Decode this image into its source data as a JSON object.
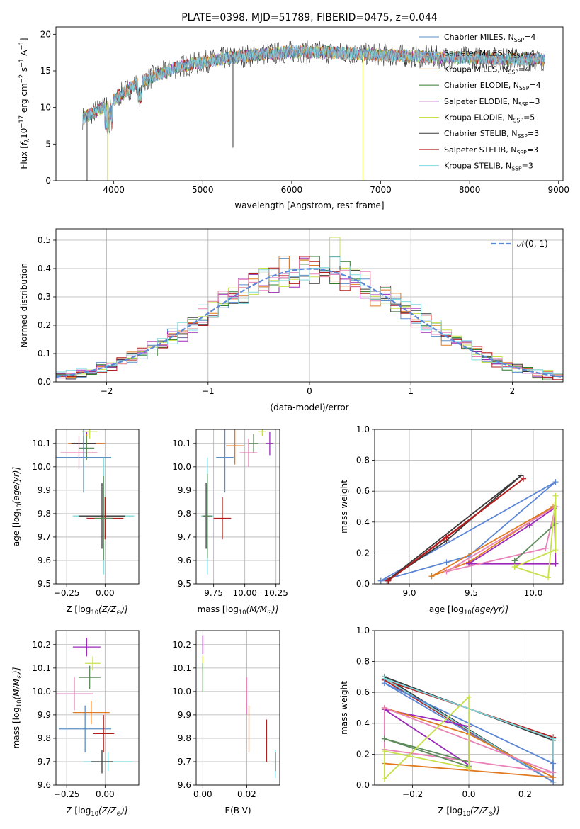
{
  "colors": {
    "chabrier_miles": "#5b8fc6",
    "salpeter_miles": "#8aa9cf",
    "kroupa_miles": "#e07b22",
    "chabrier_elodie": "#2f7d2a",
    "salpeter_elodie": "#9a28b8",
    "kroupa_elodie": "#c8e04a",
    "chabrier_stelib": "#3a3a3a",
    "salpeter_stelib": "#b21e1e",
    "kroupa_stelib": "#7fd9dd",
    "normal": "#5b86d6",
    "pink": "#e882b8",
    "sage": "#5f8c5c"
  },
  "chart_data": [
    {
      "id": "spectrum",
      "type": "line",
      "title": "PLATE=0398, MJD=51789, FIBERID=0475, z=0.044",
      "xlabel": "wavelength [Angstrom, rest frame]",
      "ylabel_parts": [
        "Flux [",
        "f",
        "λ",
        "10",
        "−17",
        " erg cm",
        "−2",
        " s",
        "−1",
        " A",
        "−1",
        "]"
      ],
      "xlim": [
        3350,
        9050
      ],
      "ylim": [
        0,
        21
      ],
      "xticks": [
        4000,
        5000,
        6000,
        7000,
        8000,
        9000
      ],
      "yticks": [
        0,
        5,
        10,
        15,
        20
      ],
      "grid": false,
      "legend_position": "top-right",
      "legend": [
        {
          "base": "Chabrier MILES, N",
          "sub": "SSP",
          "tail": "=4",
          "color_key": "chabrier_miles"
        },
        {
          "base": "Salpeter MILES, N",
          "sub": "SSP",
          "tail": "=4",
          "color_key": "salpeter_miles"
        },
        {
          "base": "Kroupa MILES, N",
          "sub": "SSP",
          "tail": "=4",
          "color_key": "kroupa_miles"
        },
        {
          "base": "Chabrier ELODIE, N",
          "sub": "SSP",
          "tail": "=4",
          "color_key": "chabrier_elodie"
        },
        {
          "base": "Salpeter ELODIE, N",
          "sub": "SSP",
          "tail": "=3",
          "color_key": "salpeter_elodie"
        },
        {
          "base": "Kroupa ELODIE, N",
          "sub": "SSP",
          "tail": "=5",
          "color_key": "kroupa_elodie"
        },
        {
          "base": "Chabrier STELIB, N",
          "sub": "SSP",
          "tail": "=3",
          "color_key": "chabrier_stelib"
        },
        {
          "base": "Salpeter STELIB, N",
          "sub": "SSP",
          "tail": "=3",
          "color_key": "salpeter_stelib"
        },
        {
          "base": "Kroupa STELIB, N",
          "sub": "SSP",
          "tail": "=3",
          "color_key": "kroupa_stelib"
        }
      ],
      "data_range_x": [
        3650,
        8850
      ],
      "continuum": [
        [
          3650,
          8.5
        ],
        [
          3800,
          9.5
        ],
        [
          3950,
          10.5
        ],
        [
          4100,
          12.0
        ],
        [
          4300,
          13.5
        ],
        [
          4500,
          14.5
        ],
        [
          4700,
          15.5
        ],
        [
          5000,
          16.2
        ],
        [
          5300,
          16.8
        ],
        [
          5600,
          17.2
        ],
        [
          6000,
          17.6
        ],
        [
          6500,
          17.5
        ],
        [
          7000,
          17.2
        ],
        [
          7500,
          16.9
        ],
        [
          8000,
          16.8
        ],
        [
          8500,
          16.6
        ],
        [
          8850,
          16.5
        ]
      ],
      "features": [
        {
          "x": 3700,
          "y": 0.0,
          "color_key": "chabrier_stelib"
        },
        {
          "x": 3930,
          "y": 0.0,
          "color_key": "kroupa_elodie"
        },
        {
          "x": 5340,
          "y": 4.5,
          "color_key": "chabrier_stelib"
        },
        {
          "x": 6800,
          "y": 0.0,
          "color_key": "kroupa_elodie"
        },
        {
          "x": 7430,
          "y": 0.0,
          "color_key": "kroupa_miles"
        },
        {
          "x": 7430,
          "y": 0.0,
          "color_key": "salpeter_stelib"
        }
      ]
    },
    {
      "id": "residuals",
      "type": "histogram",
      "xlabel": "(data-model)/error",
      "ylabel": "Normed distribution",
      "xlim": [
        -2.5,
        2.5
      ],
      "ylim": [
        0,
        0.54
      ],
      "xticks": [
        -2,
        -1,
        0,
        1,
        2
      ],
      "yticks": [
        0.0,
        0.1,
        0.2,
        0.3,
        0.4,
        0.5
      ],
      "grid": true,
      "legend_position": "top-right",
      "legend_label": "𝒩(0, 1)",
      "bin_width": 0.1,
      "series_color_keys": [
        "chabrier_miles",
        "kroupa_miles",
        "chabrier_elodie",
        "salpeter_elodie",
        "kroupa_elodie",
        "chabrier_stelib",
        "salpeter_stelib",
        "pink",
        "kroupa_stelib"
      ]
    },
    {
      "id": "age_vs_Z",
      "type": "errorbar",
      "xlabel_parts": [
        "Z [log",
        "10",
        "(Z/Z",
        "⊙",
        ")]"
      ],
      "ylabel_parts": [
        "age  [log",
        "10",
        "(age/yr)]"
      ],
      "xlim": [
        -0.32,
        0.22
      ],
      "ylim": [
        9.5,
        10.16
      ],
      "xticks": [
        -0.25,
        0.0
      ],
      "yticks": [
        9.5,
        9.6,
        9.7,
        9.8,
        9.9,
        10.0,
        10.1
      ],
      "grid": true,
      "points": [
        {
          "x": -0.1,
          "y": 10.15,
          "xerr": 0.05,
          "yerr": 0.03,
          "color_key": "kroupa_elodie"
        },
        {
          "x": -0.12,
          "y": 10.1,
          "xerr": 0.1,
          "yerr": 0.05,
          "color_key": "salpeter_elodie"
        },
        {
          "x": -0.12,
          "y": 10.1,
          "xerr": 0.12,
          "yerr": 0.04,
          "color_key": "kroupa_miles"
        },
        {
          "x": -0.14,
          "y": 10.1,
          "xerr": 0.08,
          "yerr": 0.03,
          "color_key": "chabrier_stelib"
        },
        {
          "x": -0.17,
          "y": 10.06,
          "xerr": 0.12,
          "yerr": 0.07,
          "color_key": "pink"
        },
        {
          "x": -0.12,
          "y": 10.08,
          "xerr": 0.05,
          "yerr": 0.05,
          "color_key": "sage"
        },
        {
          "x": -0.14,
          "y": 10.04,
          "xerr": 0.18,
          "yerr": 0.15,
          "color_key": "chabrier_miles"
        },
        {
          "x": -0.01,
          "y": 9.79,
          "xerr": 0.2,
          "yerr": 0.25,
          "color_key": "kroupa_stelib"
        },
        {
          "x": -0.02,
          "y": 9.79,
          "xerr": 0.15,
          "yerr": 0.14,
          "color_key": "chabrier_stelib"
        },
        {
          "x": 0.0,
          "y": 9.78,
          "xerr": 0.12,
          "yerr": 0.09,
          "color_key": "salpeter_stelib"
        },
        {
          "x": -0.01,
          "y": 9.78,
          "xerr": 0.06,
          "yerr": 0.18,
          "color_key": "sage"
        }
      ]
    },
    {
      "id": "age_vs_mass",
      "type": "errorbar",
      "xlabel_parts": [
        "mass [log",
        "10",
        "(M/M",
        "⊙",
        ")]"
      ],
      "xlim": [
        9.61,
        10.28
      ],
      "ylim": [
        9.5,
        10.16
      ],
      "xticks": [
        9.75,
        10.0,
        10.25
      ],
      "yticks": [
        9.5,
        9.6,
        9.7,
        9.8,
        9.9,
        10.0,
        10.1
      ],
      "grid": true,
      "points": [
        {
          "x": 10.14,
          "y": 10.15,
          "xerr": 0.03,
          "yerr": 0.02,
          "color_key": "kroupa_elodie"
        },
        {
          "x": 10.2,
          "y": 10.1,
          "xerr": 0.03,
          "yerr": 0.05,
          "color_key": "salpeter_elodie"
        },
        {
          "x": 10.07,
          "y": 10.1,
          "xerr": 0.04,
          "yerr": 0.04,
          "color_key": "sage"
        },
        {
          "x": 9.92,
          "y": 10.09,
          "xerr": 0.07,
          "yerr": 0.08,
          "color_key": "kroupa_miles"
        },
        {
          "x": 10.03,
          "y": 10.06,
          "xerr": 0.07,
          "yerr": 0.06,
          "color_key": "pink"
        },
        {
          "x": 9.84,
          "y": 10.04,
          "xerr": 0.07,
          "yerr": 0.15,
          "color_key": "chabrier_miles"
        },
        {
          "x": 9.7,
          "y": 9.79,
          "xerr": 0.05,
          "yerr": 0.25,
          "color_key": "kroupa_stelib"
        },
        {
          "x": 9.69,
          "y": 9.79,
          "xerr": 0.02,
          "yerr": 0.14,
          "color_key": "chabrier_stelib"
        },
        {
          "x": 9.82,
          "y": 9.78,
          "xerr": 0.07,
          "yerr": 0.09,
          "color_key": "salpeter_stelib"
        },
        {
          "x": 9.7,
          "y": 9.79,
          "xerr": 0.04,
          "yerr": 0.18,
          "color_key": "sage"
        }
      ]
    },
    {
      "id": "weight_vs_age",
      "type": "line",
      "xlabel_parts": [
        "age  [log",
        "10",
        "(age/yr)]"
      ],
      "ylabel": "mass weight",
      "xlim": [
        8.72,
        10.24
      ],
      "ylim": [
        0.0,
        1.0
      ],
      "xticks": [
        9.0,
        9.5,
        10.0
      ],
      "yticks": [
        0.0,
        0.2,
        0.4,
        0.6,
        0.8,
        1.0
      ],
      "grid": true,
      "series": [
        {
          "color_key": "normal",
          "x": [
            8.77,
            9.3,
            9.48,
            10.18,
            8.77
          ],
          "y": [
            0.02,
            0.14,
            0.18,
            0.66,
            0.02
          ]
        },
        {
          "color_key": "chabrier_stelib",
          "x": [
            8.82,
            9.3,
            9.9,
            8.82
          ],
          "y": [
            0.02,
            0.28,
            0.7,
            0.02
          ]
        },
        {
          "color_key": "salpeter_stelib",
          "x": [
            8.83,
            9.3,
            9.92,
            8.83
          ],
          "y": [
            0.02,
            0.3,
            0.68,
            0.02
          ]
        },
        {
          "color_key": "kroupa_miles",
          "x": [
            9.18,
            9.48,
            10.16,
            9.18
          ],
          "y": [
            0.05,
            0.14,
            0.5,
            0.05
          ]
        },
        {
          "color_key": "salpeter_elodie",
          "x": [
            9.48,
            9.97,
            10.17,
            10.18,
            9.48
          ],
          "y": [
            0.13,
            0.38,
            0.49,
            0.13,
            0.13
          ]
        },
        {
          "color_key": "pink",
          "x": [
            9.3,
            10.1,
            10.18,
            9.3
          ],
          "y": [
            0.08,
            0.23,
            0.5,
            0.08
          ]
        },
        {
          "color_key": "sage",
          "x": [
            9.85,
            10.18,
            9.85,
            9.85
          ],
          "y": [
            0.15,
            0.39,
            0.15,
            0.15
          ]
        },
        {
          "color_key": "kroupa_elodie",
          "x": [
            9.85,
            10.12,
            10.18,
            10.18,
            9.85
          ],
          "y": [
            0.11,
            0.04,
            0.57,
            0.22,
            0.11
          ]
        }
      ]
    },
    {
      "id": "mass_vs_Z",
      "type": "errorbar",
      "xlabel_parts": [
        "Z [log",
        "10",
        "(Z/Z",
        "⊙",
        ")]"
      ],
      "ylabel_parts": [
        "mass [log",
        "10",
        "(M/M",
        "⊙",
        ")]"
      ],
      "xlim": [
        -0.32,
        0.22
      ],
      "ylim": [
        9.6,
        10.26
      ],
      "xticks": [
        -0.25,
        0.0
      ],
      "yticks": [
        9.6,
        9.7,
        9.8,
        9.9,
        10.0,
        10.1,
        10.2
      ],
      "grid": true,
      "points": [
        {
          "x": -0.12,
          "y": 10.19,
          "xerr": 0.09,
          "yerr": 0.04,
          "color_key": "salpeter_elodie"
        },
        {
          "x": -0.08,
          "y": 10.12,
          "xerr": 0.05,
          "yerr": 0.03,
          "color_key": "kroupa_elodie"
        },
        {
          "x": -0.1,
          "y": 10.06,
          "xerr": 0.07,
          "yerr": 0.05,
          "color_key": "sage"
        },
        {
          "x": -0.2,
          "y": 9.99,
          "xerr": 0.12,
          "yerr": 0.07,
          "color_key": "pink"
        },
        {
          "x": -0.09,
          "y": 9.91,
          "xerr": 0.12,
          "yerr": 0.05,
          "color_key": "kroupa_miles"
        },
        {
          "x": -0.13,
          "y": 9.84,
          "xerr": 0.17,
          "yerr": 0.1,
          "color_key": "chabrier_miles"
        },
        {
          "x": -0.01,
          "y": 9.82,
          "xerr": 0.07,
          "yerr": 0.08,
          "color_key": "salpeter_stelib"
        },
        {
          "x": 0.02,
          "y": 9.7,
          "xerr": 0.16,
          "yerr": 0.04,
          "color_key": "kroupa_stelib"
        },
        {
          "x": -0.02,
          "y": 9.7,
          "xerr": 0.07,
          "yerr": 0.05,
          "color_key": "chabrier_stelib"
        }
      ]
    },
    {
      "id": "mass_vs_EBV",
      "type": "errorbar",
      "xlabel": "E(B-V)",
      "xlim": [
        -0.003,
        0.035
      ],
      "ylim": [
        9.6,
        10.26
      ],
      "xticks": [
        0.0,
        0.02
      ],
      "yticks": [
        9.6,
        9.7,
        9.8,
        9.9,
        10.0,
        10.1,
        10.2
      ],
      "grid": true,
      "points": [
        {
          "x": 0.0,
          "y": 10.2,
          "xerr": 0.0,
          "yerr": 0.04,
          "color_key": "salpeter_elodie"
        },
        {
          "x": 0.0,
          "y": 10.12,
          "xerr": 0.0,
          "yerr": 0.03,
          "color_key": "kroupa_elodie"
        },
        {
          "x": 0.0,
          "y": 10.06,
          "xerr": 0.0,
          "yerr": 0.06,
          "color_key": "sage"
        },
        {
          "x": 0.02,
          "y": 9.98,
          "xerr": 0.0,
          "yerr": 0.08,
          "color_key": "pink"
        },
        {
          "x": 0.021,
          "y": 9.84,
          "xerr": 0.0,
          "yerr": 0.1,
          "color_key": "kroupa_miles"
        },
        {
          "x": 0.029,
          "y": 9.79,
          "xerr": 0.0,
          "yerr": 0.09,
          "color_key": "salpeter_stelib"
        },
        {
          "x": 0.033,
          "y": 9.69,
          "xerr": 0.0,
          "yerr": 0.06,
          "color_key": "kroupa_stelib"
        },
        {
          "x": 0.033,
          "y": 9.7,
          "xerr": 0.0,
          "yerr": 0.04,
          "color_key": "chabrier_stelib"
        }
      ]
    },
    {
      "id": "weight_vs_Z",
      "type": "line",
      "xlabel_parts": [
        "Z [log",
        "10",
        "(Z/Z",
        "⊙",
        ")]"
      ],
      "ylabel": "mass weight",
      "xlim": [
        -0.335,
        0.335
      ],
      "ylim": [
        0.0,
        1.0
      ],
      "xticks": [
        -0.2,
        0.0,
        0.2
      ],
      "yticks": [
        0.0,
        0.2,
        0.4,
        0.6,
        0.8,
        1.0
      ],
      "grid": true,
      "series": [
        {
          "color_key": "chabrier_stelib",
          "x": [
            -0.3,
            0.3,
            0.3,
            -0.3
          ],
          "y": [
            0.7,
            0.29,
            0.02,
            0.7
          ]
        },
        {
          "color_key": "salpeter_stelib",
          "x": [
            -0.3,
            0.3,
            0.3,
            -0.3
          ],
          "y": [
            0.68,
            0.31,
            0.02,
            0.68
          ]
        },
        {
          "color_key": "kroupa_stelib",
          "x": [
            -0.3,
            0.3,
            0.3,
            -0.3
          ],
          "y": [
            0.69,
            0.3,
            0.02,
            0.69
          ]
        },
        {
          "color_key": "normal",
          "x": [
            -0.3,
            0.3,
            0.3,
            -0.3
          ],
          "y": [
            0.66,
            0.14,
            0.02,
            0.66
          ]
        },
        {
          "color_key": "salpeter_elodie",
          "x": [
            -0.3,
            0.0,
            0.0,
            -0.3
          ],
          "y": [
            0.49,
            0.38,
            0.13,
            0.49
          ]
        },
        {
          "color_key": "kroupa_miles",
          "x": [
            -0.3,
            0.0,
            0.3,
            -0.3,
            -0.3
          ],
          "y": [
            0.5,
            0.33,
            0.05,
            0.14,
            0.5
          ]
        },
        {
          "color_key": "pink",
          "x": [
            -0.3,
            0.3,
            -0.3,
            -0.3
          ],
          "y": [
            0.23,
            0.08,
            0.5,
            0.23
          ]
        },
        {
          "color_key": "sage",
          "x": [
            -0.3,
            0.0,
            0.0,
            -0.3
          ],
          "y": [
            0.3,
            0.15,
            0.12,
            0.3
          ]
        },
        {
          "color_key": "kroupa_elodie",
          "x": [
            -0.3,
            0.0,
            0.0,
            -0.3,
            -0.3
          ],
          "y": [
            0.04,
            0.57,
            0.11,
            0.22,
            0.04
          ]
        }
      ]
    }
  ]
}
